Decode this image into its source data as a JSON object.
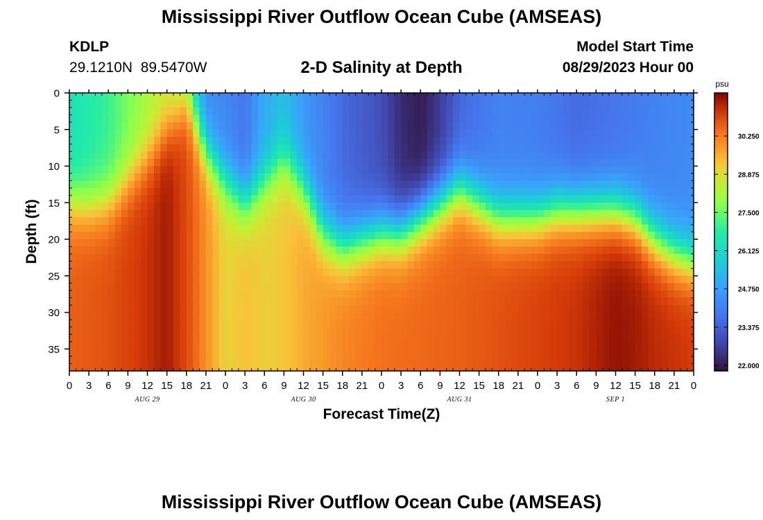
{
  "header": {
    "title": "Mississippi River Outflow Ocean Cube (AMSEAS)",
    "station_id": "KDLP",
    "station_coords": "29.1210N  89.5470W",
    "subtitle": "2-D Salinity at Depth",
    "model_start_label": "Model Start Time",
    "model_start_value": "08/29/2023 Hour 00"
  },
  "footer": {
    "title": "Mississippi River Outflow Ocean Cube (AMSEAS)"
  },
  "chart_data": {
    "type": "heatmap",
    "xlabel": "Forecast Time(Z)",
    "ylabel": "Depth (ft)",
    "x_tick_labels": [
      "0",
      "3",
      "6",
      "9",
      "12",
      "15",
      "18",
      "21",
      "0",
      "3",
      "6",
      "9",
      "12",
      "15",
      "18",
      "21",
      "0",
      "3",
      "6",
      "9",
      "12",
      "15",
      "18",
      "21",
      "0",
      "3",
      "6",
      "9",
      "12",
      "15",
      "18",
      "21",
      "0"
    ],
    "x_hours": [
      0,
      3,
      6,
      9,
      12,
      15,
      18,
      21,
      24,
      27,
      30,
      33,
      36,
      39,
      42,
      45,
      48,
      51,
      54,
      57,
      60,
      63,
      66,
      69,
      72,
      75,
      78,
      81,
      84,
      87,
      90,
      93,
      96
    ],
    "xlim": [
      0,
      96
    ],
    "day_labels": [
      {
        "label": "AUG 29",
        "hour": 12
      },
      {
        "label": "AUG 30",
        "hour": 36
      },
      {
        "label": "AUG 31",
        "hour": 60
      },
      {
        "label": "SEP 1",
        "hour": 84
      }
    ],
    "y_ticks": [
      0,
      5,
      10,
      15,
      20,
      25,
      30,
      35
    ],
    "ylim": [
      0,
      38
    ],
    "y_inverted": true,
    "colorbar": {
      "unit": "psu",
      "ticks": [
        "30.250",
        "28.875",
        "27.500",
        "26.125",
        "24.750",
        "23.375",
        "22.000"
      ],
      "min": 21.8,
      "max": 31.8
    },
    "halocline_depth_ft": [
      [
        0,
        15
      ],
      [
        3,
        15.5
      ],
      [
        6,
        15
      ],
      [
        9,
        12
      ],
      [
        12,
        9
      ],
      [
        15,
        5
      ],
      [
        18,
        1
      ],
      [
        21,
        8
      ],
      [
        24,
        12
      ],
      [
        27,
        15
      ],
      [
        30,
        12
      ],
      [
        33,
        9
      ],
      [
        36,
        13
      ],
      [
        39,
        19
      ],
      [
        42,
        21
      ],
      [
        45,
        20
      ],
      [
        48,
        19
      ],
      [
        51,
        19
      ],
      [
        54,
        17
      ],
      [
        57,
        15
      ],
      [
        60,
        13
      ],
      [
        63,
        15
      ],
      [
        66,
        17
      ],
      [
        69,
        17
      ],
      [
        72,
        17
      ],
      [
        75,
        16
      ],
      [
        78,
        16
      ],
      [
        81,
        16
      ],
      [
        84,
        16
      ],
      [
        87,
        17
      ],
      [
        90,
        20
      ],
      [
        93,
        22
      ],
      [
        96,
        23
      ]
    ],
    "surface_salinity": [
      [
        0,
        26.4
      ],
      [
        6,
        27.0
      ],
      [
        12,
        28.2
      ],
      [
        15,
        28.6
      ],
      [
        18,
        27.2
      ],
      [
        21,
        24.3
      ],
      [
        24,
        24.2
      ],
      [
        27,
        23.8
      ],
      [
        30,
        25.0
      ],
      [
        33,
        25.4
      ],
      [
        36,
        24.6
      ],
      [
        42,
        23.6
      ],
      [
        48,
        23.0
      ],
      [
        51,
        22.3
      ],
      [
        54,
        22.0
      ],
      [
        57,
        22.6
      ],
      [
        60,
        23.5
      ],
      [
        66,
        24.1
      ],
      [
        72,
        24.0
      ],
      [
        78,
        23.6
      ],
      [
        84,
        23.8
      ],
      [
        90,
        24.1
      ],
      [
        96,
        24.3
      ]
    ],
    "bottom_salinity": [
      [
        0,
        30.6
      ],
      [
        6,
        30.8
      ],
      [
        12,
        31.2
      ],
      [
        15,
        31.5
      ],
      [
        18,
        30.9
      ],
      [
        21,
        30.0
      ],
      [
        24,
        29.0
      ],
      [
        27,
        29.3
      ],
      [
        30,
        29.1
      ],
      [
        33,
        29.2
      ],
      [
        36,
        29.6
      ],
      [
        42,
        30.1
      ],
      [
        48,
        30.4
      ],
      [
        54,
        30.5
      ],
      [
        60,
        30.6
      ],
      [
        66,
        30.8
      ],
      [
        72,
        31.0
      ],
      [
        78,
        31.2
      ],
      [
        84,
        31.6
      ],
      [
        87,
        31.5
      ],
      [
        90,
        31.3
      ],
      [
        96,
        31.1
      ]
    ]
  }
}
